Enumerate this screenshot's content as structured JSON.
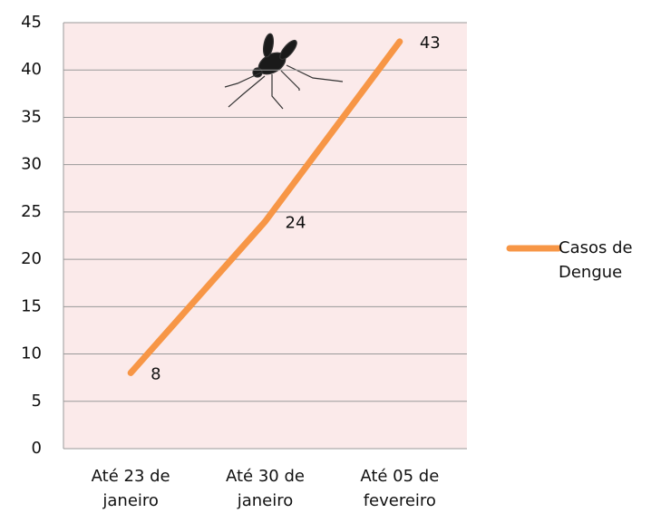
{
  "chart_data": {
    "type": "line",
    "categories": [
      "Até 23 de janeiro",
      "Até 30 de janeiro",
      "Até 05 de fevereiro"
    ],
    "series": [
      {
        "name": "Casos de Dengue",
        "color": "#f79646",
        "values": [
          8,
          24,
          43
        ]
      }
    ],
    "ylim": [
      0,
      45
    ],
    "yticks": [
      0,
      5,
      10,
      15,
      20,
      25,
      30,
      35,
      40,
      45
    ],
    "grid": true,
    "legend": "right"
  }
}
